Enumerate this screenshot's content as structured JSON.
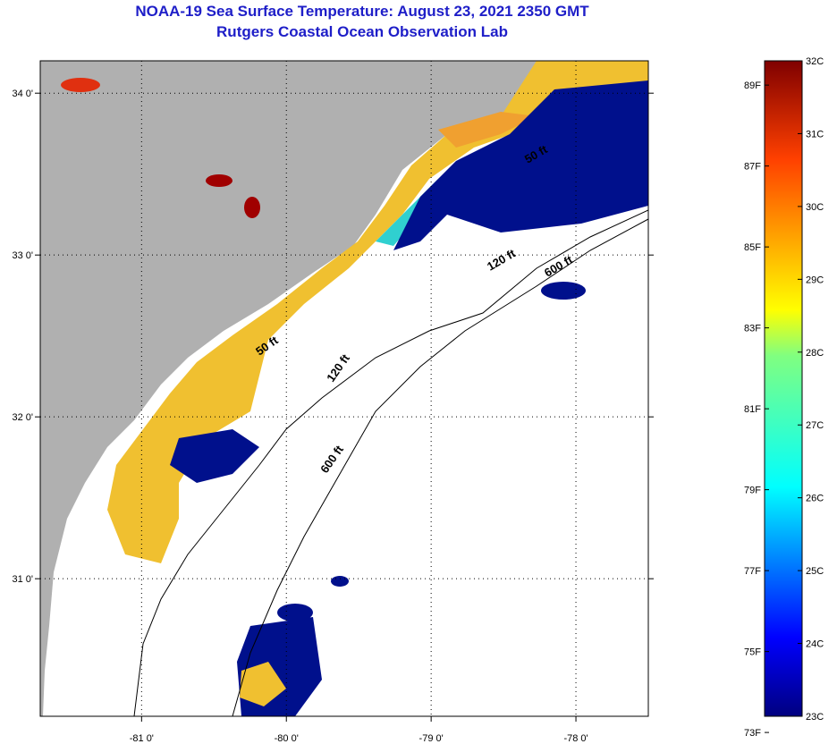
{
  "header": {
    "title": "NOAA-19 Sea Surface Temperature:  August 23, 2021 2350 GMT",
    "subtitle": "Rutgers Coastal Ocean Observation Lab"
  },
  "map": {
    "lon_range": [
      -81.7,
      -77.5
    ],
    "lat_range": [
      30.15,
      34.2
    ],
    "lon_ticks": [
      {
        "value": -81,
        "label": "-81 0'"
      },
      {
        "value": -80,
        "label": "-80 0'"
      },
      {
        "value": -79,
        "label": "-79 0'"
      },
      {
        "value": -78,
        "label": "-78 0'"
      }
    ],
    "lat_ticks": [
      {
        "value": 34,
        "label": "34 0'"
      },
      {
        "value": 33,
        "label": "33 0'"
      },
      {
        "value": 32,
        "label": "32 0'"
      },
      {
        "value": 31,
        "label": "31 0'"
      }
    ],
    "contour_labels": [
      "50 ft",
      "120 ft",
      "600 ft",
      "50 ft",
      "120 ft",
      "600 ft"
    ],
    "colors": {
      "land": "#b0b0b0",
      "cloud": "#ffffff",
      "warm": "#f0c030",
      "cool": "#00108c"
    }
  },
  "colorbar": {
    "celsius_labels": [
      "32C",
      "31C",
      "30C",
      "29C",
      "28C",
      "27C",
      "26C",
      "25C",
      "24C",
      "23C"
    ],
    "fahrenheit_labels": [
      "89F",
      "87F",
      "85F",
      "83F",
      "81F",
      "79F",
      "77F",
      "75F",
      "73F"
    ],
    "celsius_range": [
      23,
      32
    ]
  }
}
